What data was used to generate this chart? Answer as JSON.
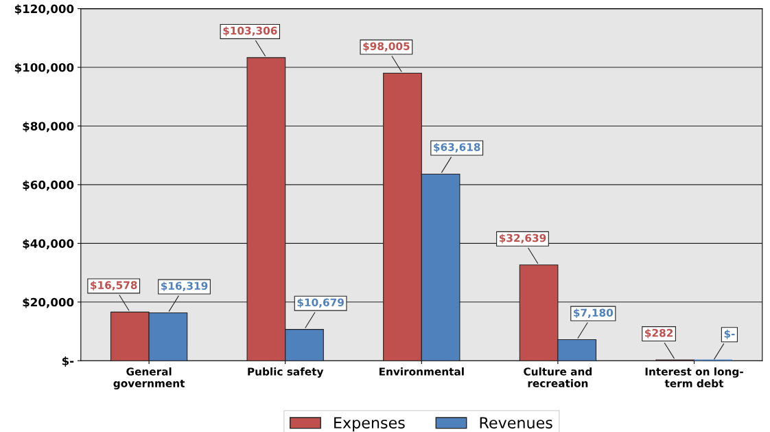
{
  "chart_data": {
    "type": "bar",
    "categories": [
      "General\ngovernment",
      "Public safety",
      "Environmental",
      "Culture and\nrecreation",
      "Interest on long-\nterm debt"
    ],
    "series": [
      {
        "name": "Expenses",
        "color": "#c0504d",
        "values": [
          16578,
          103306,
          98005,
          32639,
          282
        ],
        "value_labels": [
          "$16,578",
          "$103,306",
          "$98,005",
          "$32,639",
          "$282"
        ]
      },
      {
        "name": "Revenues",
        "color": "#4f81bd",
        "values": [
          16319,
          10679,
          63618,
          7180,
          0
        ],
        "value_labels": [
          "$16,319",
          "$10,679",
          "$63,618",
          "$7,180",
          "$-"
        ]
      }
    ],
    "ylim": [
      0,
      120000
    ],
    "yticks": [
      {
        "value": 0,
        "label": "$-"
      },
      {
        "value": 20000,
        "label": "$20,000"
      },
      {
        "value": 40000,
        "label": "$40,000"
      },
      {
        "value": 60000,
        "label": "$60,000"
      },
      {
        "value": 80000,
        "label": "$80,000"
      },
      {
        "value": 100000,
        "label": "$100,000"
      },
      {
        "value": 120000,
        "label": "$120,000"
      }
    ],
    "grid": "y",
    "legend": "bottom"
  }
}
